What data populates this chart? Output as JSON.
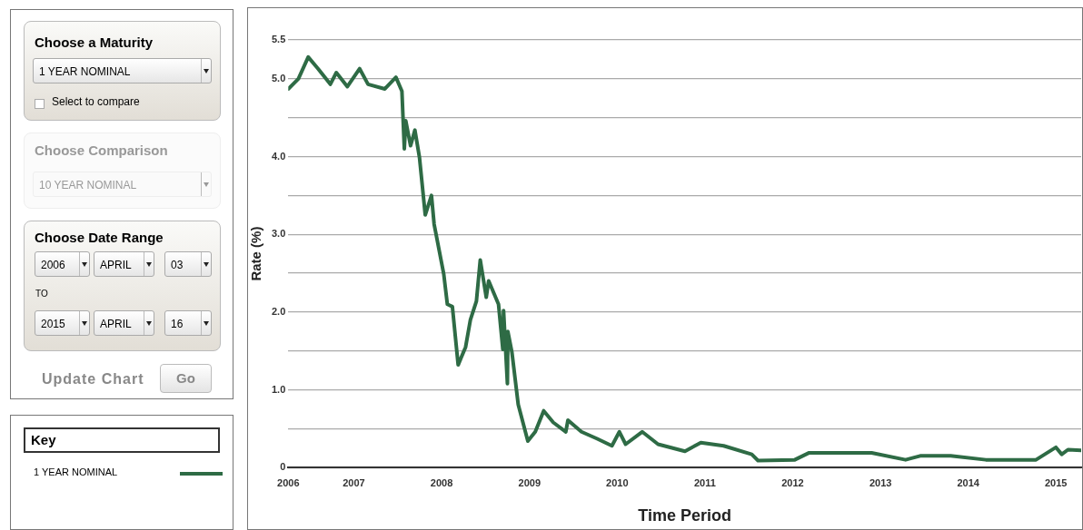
{
  "chart_data": {
    "type": "line",
    "xlabel": "Time Period",
    "ylabel": "Rate (%)",
    "legend": "left",
    "legend_title": "Key",
    "annotations": [
      "Choose a Maturity",
      "1 YEAR NOMINAL",
      "Select to compare",
      "Choose Comparison",
      "10 YEAR NOMINAL",
      "Choose Date Range",
      "2006",
      "APRIL",
      "03",
      "TO",
      "2015",
      "APRIL",
      "16",
      "Update Chart",
      "Go"
    ],
    "x": [
      "2006-04-03",
      "2006-05-15",
      "2006-06-25",
      "2006-08-05",
      "2006-09-25",
      "2006-10-20",
      "2006-12-05",
      "2007-01-25",
      "2007-03-01",
      "2007-05-10",
      "2007-06-25",
      "2007-07-20",
      "2007-07-30",
      "2007-08-05",
      "2007-08-25",
      "2007-09-12",
      "2007-10-01",
      "2007-10-25",
      "2007-11-20",
      "2007-12-01",
      "2008-01-10",
      "2008-01-25",
      "2008-02-15",
      "2008-03-10",
      "2008-04-10",
      "2008-04-30",
      "2008-05-25",
      "2008-06-10",
      "2008-07-05",
      "2008-07-15",
      "2008-08-25",
      "2008-09-12",
      "2008-09-15",
      "2008-10-01",
      "2008-10-03",
      "2008-10-20",
      "2008-11-15",
      "2008-12-25",
      "2009-01-25",
      "2009-03-01",
      "2009-04-10",
      "2009-06-01",
      "2009-06-10",
      "2009-08-05",
      "2009-10-10",
      "2009-12-10",
      "2010-01-10",
      "2010-02-05",
      "2010-04-15",
      "2010-06-20",
      "2010-10-10",
      "2010-12-15",
      "2011-03-20",
      "2011-07-15",
      "2011-08-10",
      "2012-01-10",
      "2012-03-10",
      "2012-11-25",
      "2013-04-15",
      "2013-06-15",
      "2013-10-20",
      "2014-03-15",
      "2014-10-10",
      "2015-01-01",
      "2015-01-25",
      "2015-02-20",
      "2015-04-16"
    ],
    "series": [
      {
        "name": "1 YEAR NOMINAL",
        "color": "#2e6b45",
        "values": [
          4.87,
          5.0,
          5.28,
          5.13,
          4.93,
          5.08,
          4.9,
          5.13,
          4.93,
          4.87,
          5.02,
          4.84,
          4.1,
          4.46,
          4.14,
          4.34,
          3.99,
          3.25,
          3.5,
          3.13,
          2.49,
          2.1,
          2.07,
          1.32,
          1.55,
          1.9,
          2.14,
          2.67,
          2.19,
          2.4,
          2.1,
          1.52,
          2.02,
          1.08,
          1.75,
          1.48,
          0.81,
          0.34,
          0.46,
          0.73,
          0.58,
          0.46,
          0.61,
          0.46,
          0.37,
          0.28,
          0.46,
          0.3,
          0.46,
          0.3,
          0.21,
          0.32,
          0.28,
          0.17,
          0.09,
          0.1,
          0.19,
          0.19,
          0.1,
          0.15,
          0.15,
          0.1,
          0.1,
          0.26,
          0.17,
          0.23,
          0.22
        ]
      }
    ],
    "xlim": [
      "2006-04-03",
      "2015-04-16"
    ],
    "xticks": [
      {
        "value": "2006-04-03",
        "label": "2006"
      },
      "2007",
      "2008",
      "2009",
      "2010",
      "2011",
      "2012",
      "2013",
      "2014",
      "2015"
    ],
    "ylim": [
      0,
      5.5
    ],
    "yticks": [
      0,
      {
        "value": 0.5,
        "label": null
      },
      {
        "value": 1,
        "label": "1.0"
      },
      {
        "value": 1.5,
        "label": null
      },
      {
        "value": 2,
        "label": "2.0"
      },
      {
        "value": 2.5,
        "label": null
      },
      {
        "value": 3,
        "label": "3.0"
      },
      {
        "value": 3.5,
        "label": null
      },
      {
        "value": 4,
        "label": "4.0"
      },
      {
        "value": 4.5,
        "label": null
      },
      {
        "value": 5,
        "label": "5.0"
      },
      5.5
    ],
    "grid": "y",
    "marker": "none",
    "line_style": "solid"
  }
}
